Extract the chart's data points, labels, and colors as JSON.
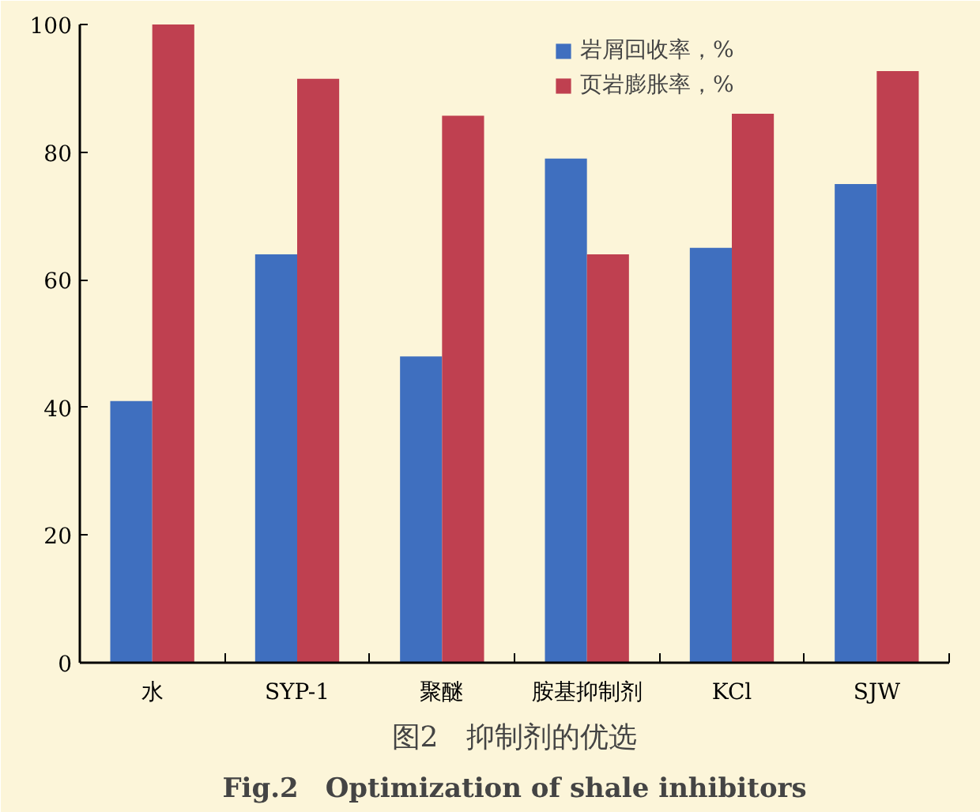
{
  "chart_data": {
    "type": "bar",
    "title": "图2　抑制剂的优选",
    "subtitle": "Fig.2　Optimization of shale inhibitors",
    "categories": [
      "水",
      "SYP-1",
      "聚醚",
      "胺基抑制剂",
      "KCl",
      "SJW"
    ],
    "series": [
      {
        "name": "岩屑回收率，%",
        "color": "#3f6fbf",
        "values": [
          41,
          64,
          48,
          79,
          65,
          75
        ]
      },
      {
        "name": "页岩膨胀率，%",
        "color": "#bf4050",
        "values": [
          100,
          91.5,
          85.7,
          64,
          86,
          92.7
        ]
      }
    ],
    "ylim": [
      0,
      100
    ],
    "yticks": [
      0,
      20,
      40,
      60,
      80,
      100
    ],
    "grid": false,
    "legend": "top right"
  }
}
